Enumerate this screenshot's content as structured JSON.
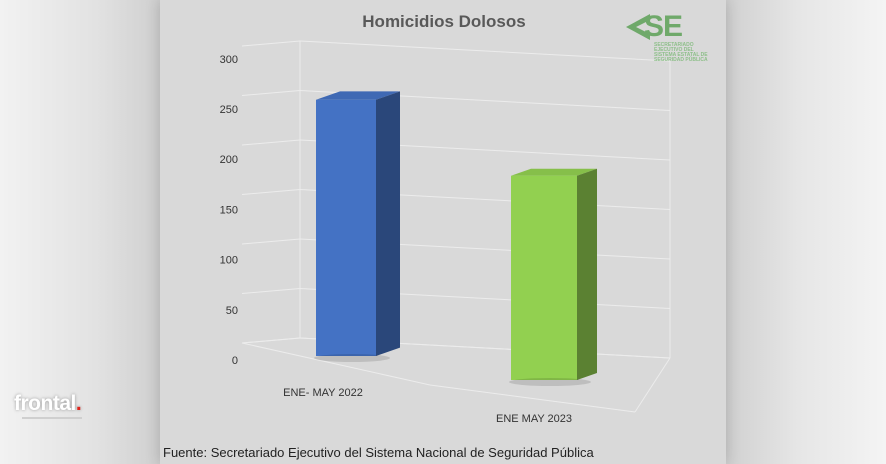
{
  "brand": {
    "name": "frontal",
    "dot": "."
  },
  "source": "Fuente: Secretariado Ejecutivo del Sistema Nacional de Seguridad Pública",
  "logo": {
    "text": "SE",
    "subtitle": "SECRETARIADO EJECUTIVO DEL SISTEMA ESTATAL DE SEGURIDAD PÚBLICA"
  },
  "chart_data": {
    "type": "bar",
    "title": "Homicidios Dolosos",
    "categories": [
      "ENE- MAY 2022",
      "ENE MAY 2023"
    ],
    "values": [
      258,
      182
    ],
    "colors": [
      "#4472c4",
      "#92d050"
    ],
    "ylim": [
      0,
      300
    ],
    "yticks": [
      "0",
      "50",
      "100",
      "150",
      "200",
      "250",
      "300"
    ],
    "grid": true,
    "legend": "none"
  }
}
